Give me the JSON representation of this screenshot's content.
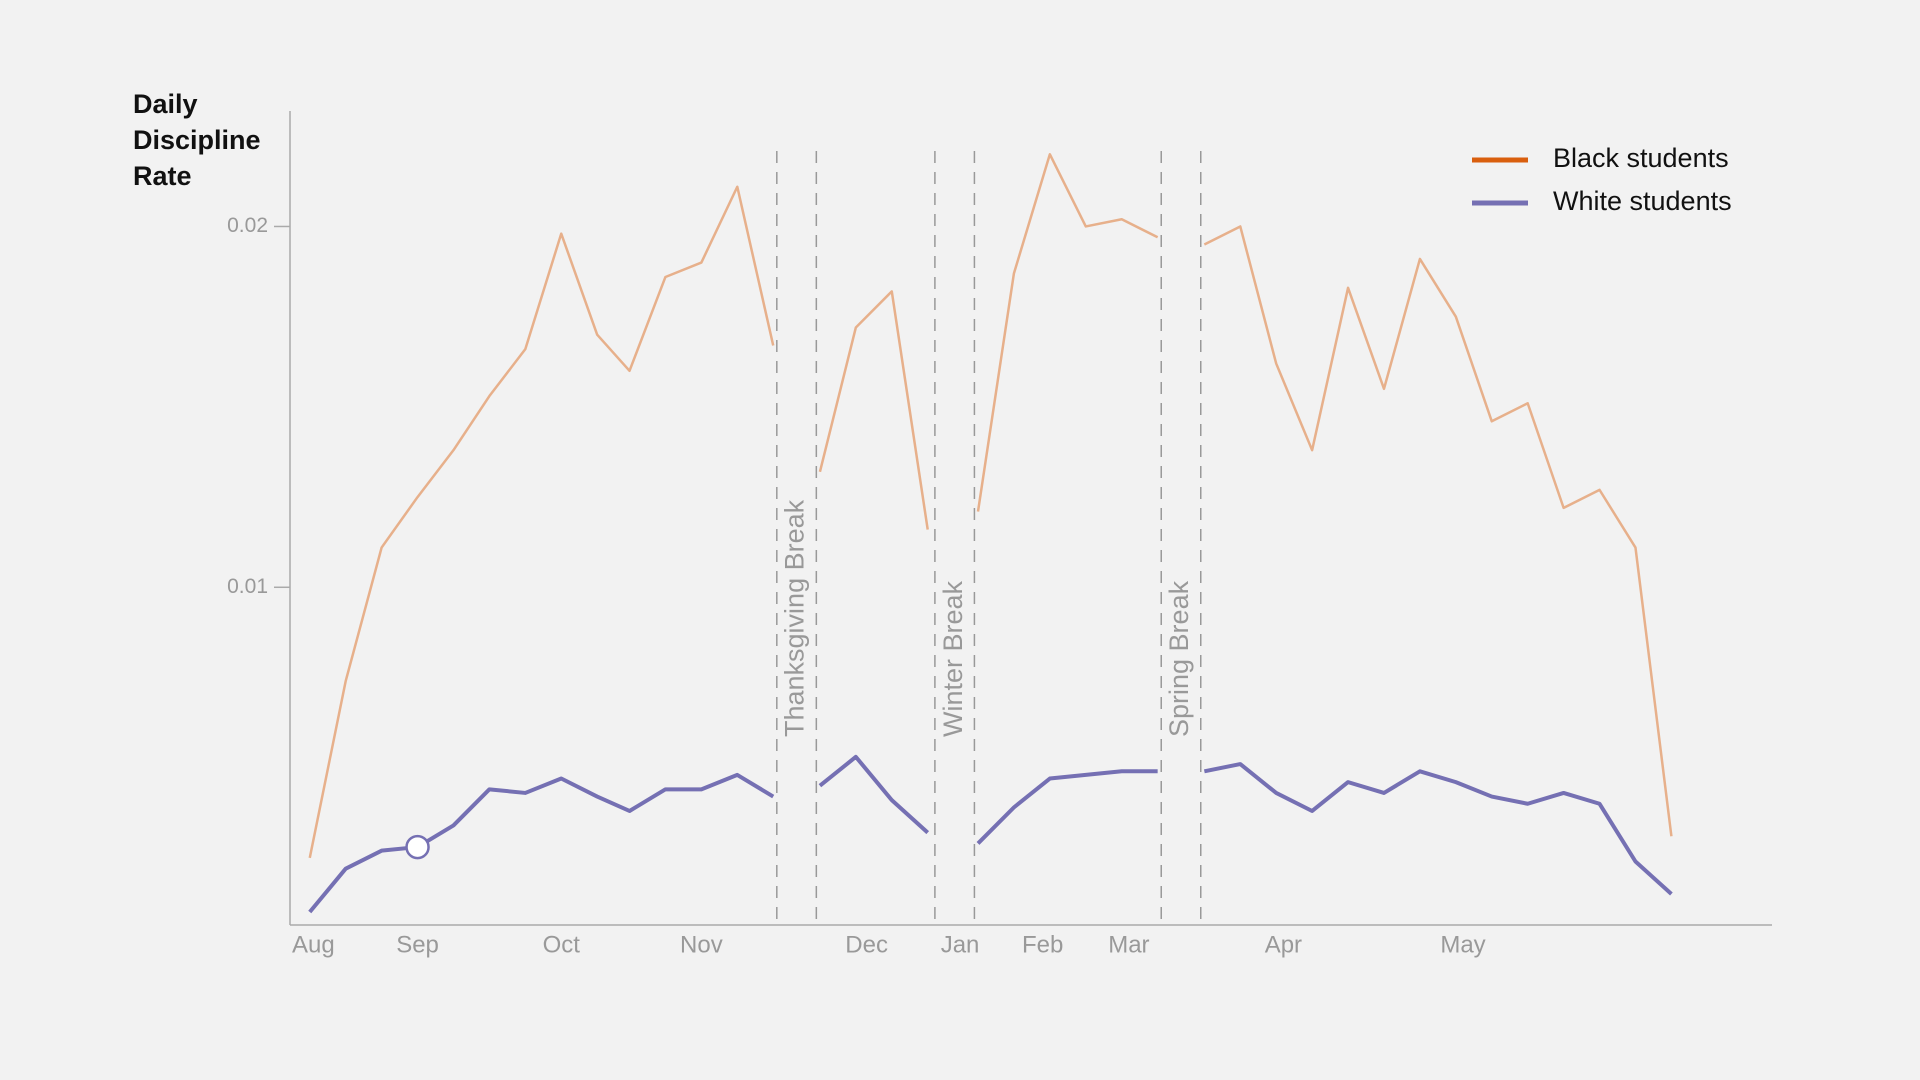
{
  "chart_data": {
    "type": "line",
    "title": "Daily Discipline Rate",
    "x": [
      0,
      1,
      2,
      3,
      4,
      5,
      6,
      7.0,
      8.0,
      8.9,
      9.9,
      10.9,
      11.9,
      12.9,
      13.6,
      14.2,
      15.2,
      16.2,
      17.2,
      17.9,
      18.6,
      19.6,
      20.6,
      21.6,
      22.6,
      23.6,
      24.2,
      24.9,
      25.9,
      26.9,
      27.9,
      28.9,
      29.9,
      30.9,
      31.9,
      32.9,
      33.9,
      34.9,
      35.9,
      36.9,
      37.9
    ],
    "series": [
      {
        "name": "Black students",
        "color": "#d95f0e",
        "opacity": 0.45,
        "values": [
          0.0025,
          0.0074,
          0.0111,
          0.0125,
          0.0138,
          0.0153,
          0.0166,
          0.0198,
          0.017,
          0.016,
          0.0186,
          0.019,
          0.0211,
          0.0167,
          null,
          0.0132,
          0.0172,
          0.0182,
          0.0116,
          null,
          0.0121,
          0.0187,
          0.022,
          0.02,
          0.0202,
          0.0197,
          null,
          0.0195,
          0.02,
          0.0162,
          0.0138,
          0.0183,
          0.0155,
          0.0191,
          0.0175,
          0.0146,
          0.0151,
          0.0122,
          0.0127,
          0.0111,
          0.0031
        ]
      },
      {
        "name": "White students",
        "color": "#7570b3",
        "opacity": 1,
        "values": [
          0.001,
          0.0022,
          0.0027,
          0.0028,
          0.0034,
          0.0044,
          0.0043,
          0.0047,
          0.0042,
          0.0038,
          0.0044,
          0.0044,
          0.0048,
          0.0042,
          null,
          0.0045,
          0.0053,
          0.0041,
          0.0032,
          null,
          0.0029,
          0.0039,
          0.0047,
          0.0048,
          0.0049,
          0.0049,
          null,
          0.0049,
          0.0051,
          0.0043,
          0.0038,
          0.0046,
          0.0043,
          0.0049,
          0.0046,
          0.0042,
          0.004,
          0.0043,
          0.004,
          0.0024,
          0.0015
        ]
      }
    ],
    "highlight": {
      "series": 1,
      "index": 3
    },
    "breaks": [
      {
        "label": "Thanksgiving Break",
        "start": 13.0,
        "end": 14.1
      },
      {
        "label": "Winter Break",
        "start": 17.4,
        "end": 18.5
      },
      {
        "label": "Spring Break",
        "start": 23.7,
        "end": 24.8
      }
    ],
    "xlim": [
      -0.55,
      40.7
    ],
    "xticks": [
      {
        "value": 0.1,
        "label": "Aug"
      },
      {
        "value": 3.0,
        "label": "Sep"
      },
      {
        "value": 7.0,
        "label": "Oct"
      },
      {
        "value": 10.9,
        "label": "Nov"
      },
      {
        "value": 15.5,
        "label": "Dec"
      },
      {
        "value": 18.1,
        "label": "Jan"
      },
      {
        "value": 20.4,
        "label": "Feb"
      },
      {
        "value": 22.8,
        "label": "Mar"
      },
      {
        "value": 27.1,
        "label": "Apr"
      },
      {
        "value": 32.1,
        "label": "May"
      }
    ],
    "ylim": [
      0.00064,
      0.0232
    ],
    "yticks": [
      0.01,
      0.02
    ],
    "legend": "upper-right"
  }
}
